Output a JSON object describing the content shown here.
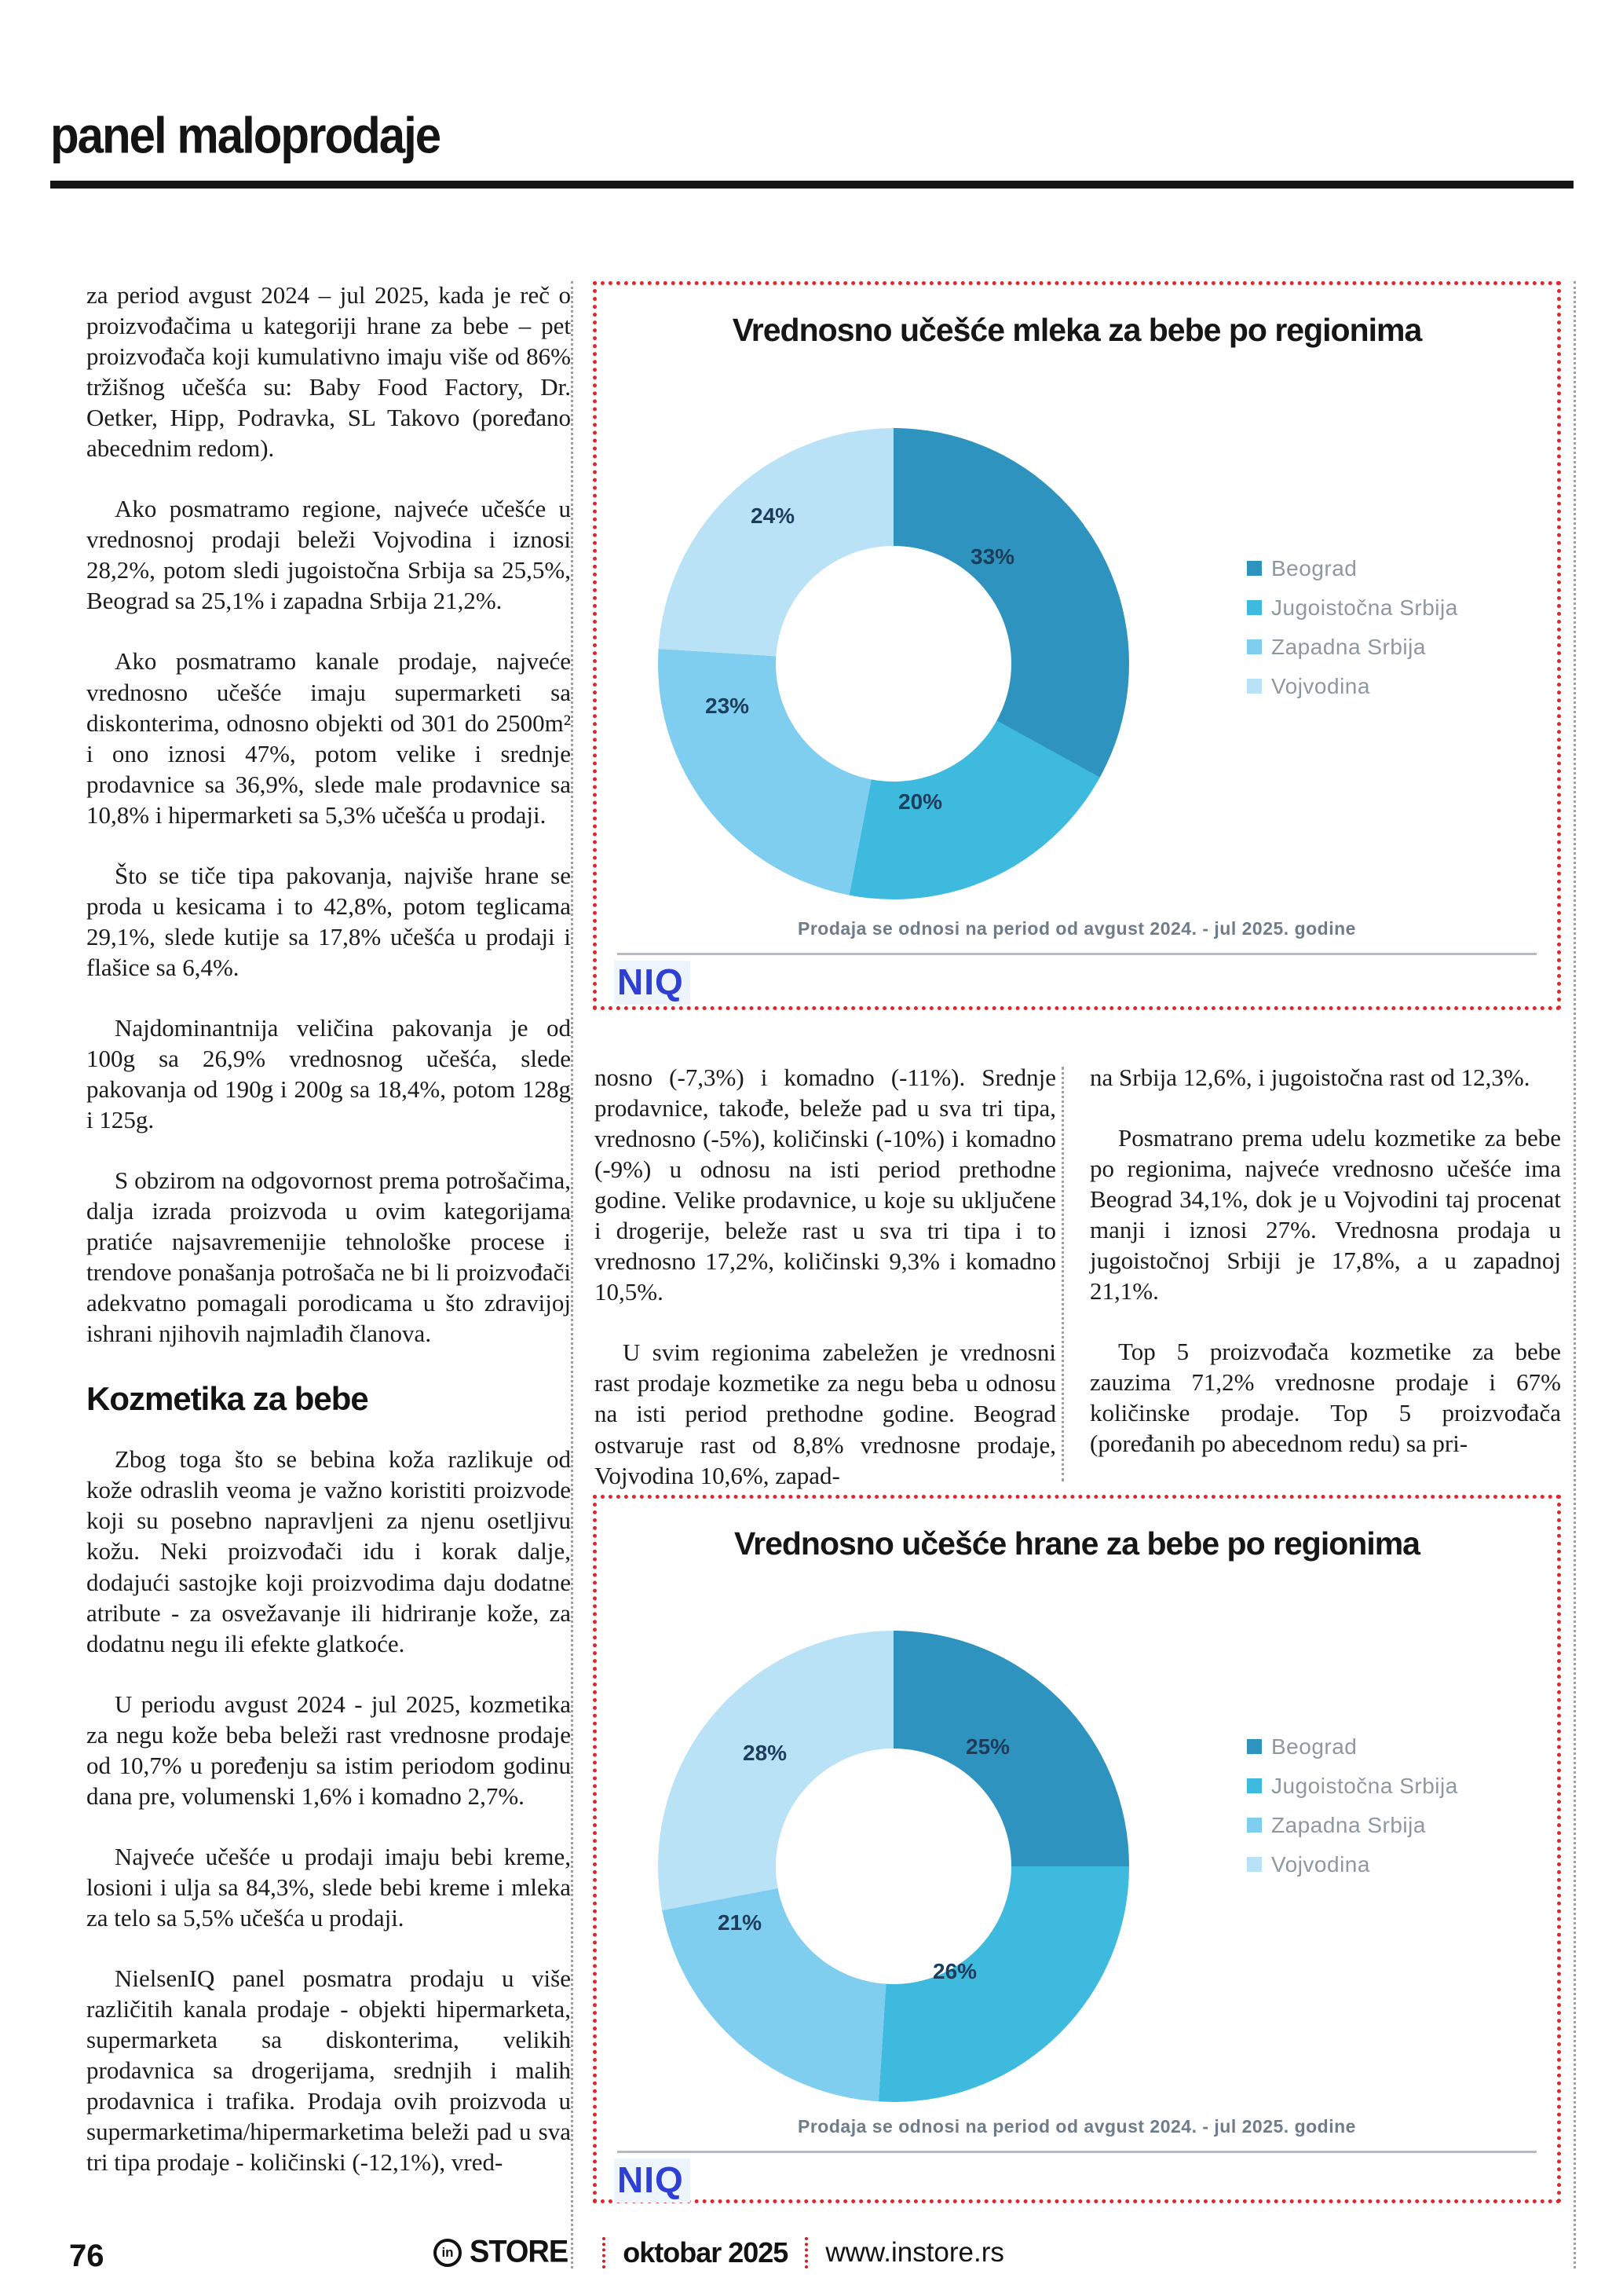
{
  "header": {
    "title": "panel maloprodaje"
  },
  "article": {
    "column_1": {
      "paragraphs": [
        "za period avgust 2024 – jul 2025, kada je reč o proizvođačima u kategoriji hrane za bebe – pet proizvođača koji kumulativno imaju više od 86% tržišnog učešća su: Baby Food Factory, Dr. Oetker, Hipp, Podravka, SL Takovo (poređano abecednim redom).",
        "Ako posmatramo regione, najveće učešće u vrednosnoj prodaji beleži Vojvodina i iznosi 28,2%, potom sledi jugoistočna Srbija sa 25,5%, Beograd sa 25,1% i zapadna Srbija 21,2%.",
        "Ako posmatramo kanale prodaje, najveće vrednosno učešće imaju supermarketi sa diskonterima, odnosno objekti od 301 do 2500m² i ono iznosi 47%, potom velike i srednje prodavnice sa 36,9%, slede male prodavnice sa 10,8% i hipermarketi sa 5,3% učešća u prodaji.",
        "Što se tiče tipa pakovanja, najviše hrane se proda u kesicama i to 42,8%, potom teglicama 29,1%, slede kutije sa 17,8% učešća u prodaji i flašice sa 6,4%.",
        "Najdominantnija veličina pakovanja je od 100g sa 26,9% vrednosnog učešća, slede pakovanja od 190g i 200g sa 18,4%, potom 128g i 125g.",
        "S obzirom na odgovornost prema potrošačima, dalja izrada proizvoda u ovim kategorijama pratiće najsavremenijie tehnološke procese i trendove ponašanja potrošača ne bi li proizvođači adekvatno pomagali porodicama u što zdravijoj ishrani njihovih najmlađih članova."
      ],
      "subheading": "Kozmetika za bebe",
      "paragraphs_2": [
        "Zbog toga što se bebina koža razlikuje od kože odraslih veoma je važno koristiti proizvode koji su posebno napravljeni za njenu osetljivu kožu. Neki proizvođači idu i korak dalje, dodajući sastojke koji proizvodima daju dodatne atribute - za osvežavanje ili hidriranje kože, za dodatnu negu ili efekte glatkoće.",
        "U periodu avgust 2024 - jul 2025, kozmetika za negu kože beba beleži rast vrednosne prodaje od 10,7% u poređenju sa istim periodom godinu dana pre, volumenski 1,6% i komadno 2,7%.",
        "Najveće učešće u prodaji imaju bebi kreme, losioni i ulja sa 84,3%, slede bebi kreme i mleka za telo sa 5,5% učešća u prodaji.",
        "NielsenIQ panel posmatra prodaju u više različitih kanala prodaje - objekti hipermarketa, supermarketa sa diskonterima, velikih prodavnica sa drogerijama, srednjih i malih prodavnica i trafika. Prodaja ovih proizvoda u supermarketima/hipermarketima beleži pad u sva tri tipa prodaje - količinski (-12,1%), vred-"
      ]
    },
    "column_2": {
      "paragraphs": [
        "nosno (-7,3%) i komadno (-11%). Srednje prodavnice, takođe, beleže pad u sva tri tipa, vrednosno (-5%), količinski (-10%) i komadno (-9%) u odnosu na isti period prethodne godine. Velike prodavnice, u koje su uključene i drogerije, beleže rast u sva tri tipa i to vrednosno 17,2%, količinski 9,3% i komadno 10,5%.",
        "U svim regionima zabeležen je vrednosni rast prodaje kozmetike za negu beba u odnosu na isti period prethodne godine. Beograd ostvaruje rast od 8,8% vrednosne prodaje, Vojvodina 10,6%, zapad-"
      ]
    },
    "column_3": {
      "paragraphs": [
        "na Srbija 12,6%, i jugoistočna rast od 12,3%.",
        "Posmatrano prema udelu kozmetike za bebe po regionima, najveće vrednosno učešće ima Beograd 34,1%, dok je u Vojvodini taj procenat manji i iznosi 27%. Vrednosna prodaja u jugoistočnoj Srbiji je 17,8%, a u zapadnoj 21,1%.",
        "Top 5 proizvođača kozmetike za bebe zauzima 71,2% vrednosne prodaje i 67% količinske prodaje. Top 5 proizvođača (poređanih po abecednom redu) sa pri-"
      ]
    }
  },
  "chart_data": [
    {
      "type": "pie",
      "donut": true,
      "title": "Vrednosno učešće mleka za bebe po regionima",
      "labels": [
        "Beograd",
        "Jugoistočna Srbija",
        "Zapadna Srbija",
        "Vojvodina"
      ],
      "values": [
        33,
        20,
        23,
        24
      ],
      "value_labels": [
        "33%",
        "20%",
        "23%",
        "24%"
      ],
      "colors": [
        "#2e93be",
        "#3dbade",
        "#7fcdef",
        "#b9e2f6"
      ],
      "legend_position": "right",
      "caption": "Prodaja se odnosi na period od avgust 2024.  - jul 2025. godine",
      "source_logo": "NIQ",
      "border_color": "#e0262b"
    },
    {
      "type": "pie",
      "donut": true,
      "title": "Vrednosno učešće hrane za bebe po regionima",
      "labels": [
        "Beograd",
        "Jugoistočna Srbija",
        "Zapadna Srbija",
        "Vojvodina"
      ],
      "values": [
        25,
        26,
        21,
        28
      ],
      "value_labels": [
        "25%",
        "26%",
        "21%",
        "28%"
      ],
      "colors": [
        "#2e93be",
        "#3dbade",
        "#7fcdef",
        "#b9e2f6"
      ],
      "legend_position": "right",
      "caption": "Prodaja se odnosi na period od avgust 2024.  - jul 2025. godine",
      "source_logo": "NIQ",
      "border_color": "#e0262b"
    }
  ],
  "footer": {
    "page_number": "76",
    "logo_mark": "in",
    "brand": "STORE",
    "issue": "oktobar 2025",
    "site": "www.instore.rs"
  }
}
